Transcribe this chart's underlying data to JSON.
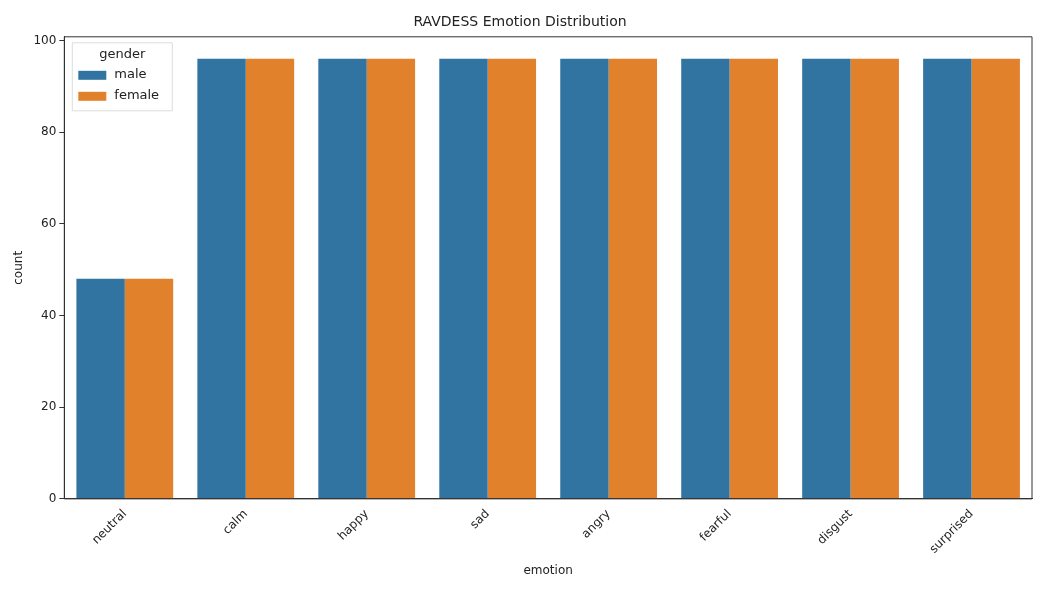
{
  "chart_data": {
    "type": "bar",
    "title": "RAVDESS Emotion Distribution",
    "xlabel": "emotion",
    "ylabel": "count",
    "legend_title": "gender",
    "categories": [
      "neutral",
      "calm",
      "happy",
      "sad",
      "angry",
      "fearful",
      "disgust",
      "surprised"
    ],
    "series": [
      {
        "name": "male",
        "color": "#3274a1",
        "values": [
          48,
          96,
          96,
          96,
          96,
          96,
          96,
          96
        ]
      },
      {
        "name": "female",
        "color": "#e1812c",
        "values": [
          48,
          96,
          96,
          96,
          96,
          96,
          96,
          96
        ]
      }
    ],
    "ylim": [
      0,
      100.8
    ],
    "yticks": [
      0,
      20,
      40,
      60,
      80,
      100
    ],
    "grid": false,
    "legend": "top left"
  }
}
